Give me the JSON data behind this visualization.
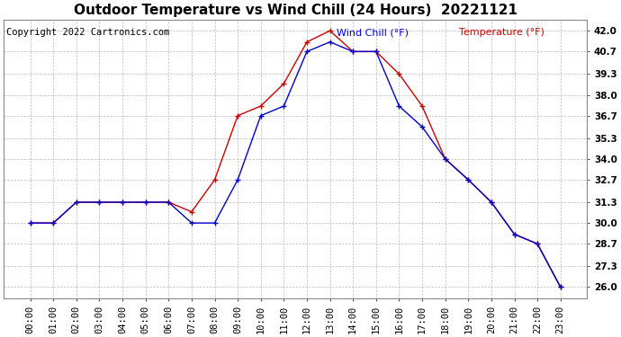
{
  "title": "Outdoor Temperature vs Wind Chill (24 Hours)  20221121",
  "copyright": "Copyright 2022 Cartronics.com",
  "legend_wind_chill": "Wind Chill (°F)",
  "legend_temperature": "Temperature (°F)",
  "x_labels": [
    "00:00",
    "01:00",
    "02:00",
    "03:00",
    "04:00",
    "05:00",
    "06:00",
    "07:00",
    "08:00",
    "09:00",
    "10:00",
    "11:00",
    "12:00",
    "13:00",
    "14:00",
    "15:00",
    "16:00",
    "17:00",
    "18:00",
    "19:00",
    "20:00",
    "21:00",
    "22:00",
    "23:00"
  ],
  "temperature": [
    30.0,
    30.0,
    31.3,
    31.3,
    31.3,
    31.3,
    31.3,
    30.7,
    32.7,
    36.7,
    37.3,
    38.7,
    41.3,
    42.0,
    40.7,
    40.7,
    39.3,
    37.3,
    34.0,
    32.7,
    31.3,
    29.3,
    28.7,
    26.0
  ],
  "wind_chill": [
    30.0,
    30.0,
    31.3,
    31.3,
    31.3,
    31.3,
    31.3,
    30.0,
    30.0,
    32.7,
    36.7,
    37.3,
    40.7,
    41.3,
    40.7,
    40.7,
    37.3,
    36.0,
    34.0,
    32.7,
    31.3,
    29.3,
    28.7,
    26.0
  ],
  "ylim_min": 25.3,
  "ylim_max": 42.7,
  "yticks": [
    26.0,
    27.3,
    28.7,
    30.0,
    31.3,
    32.7,
    34.0,
    35.3,
    36.7,
    38.0,
    39.3,
    40.7,
    42.0
  ],
  "temp_color": "#cc0000",
  "wind_chill_color": "#0000cc",
  "bg_color": "#ffffff",
  "plot_bg_color": "#ffffff",
  "grid_color": "#bbbbbb",
  "title_fontsize": 11,
  "tick_fontsize": 7.5,
  "copyright_fontsize": 7.5,
  "legend_fontsize": 8
}
